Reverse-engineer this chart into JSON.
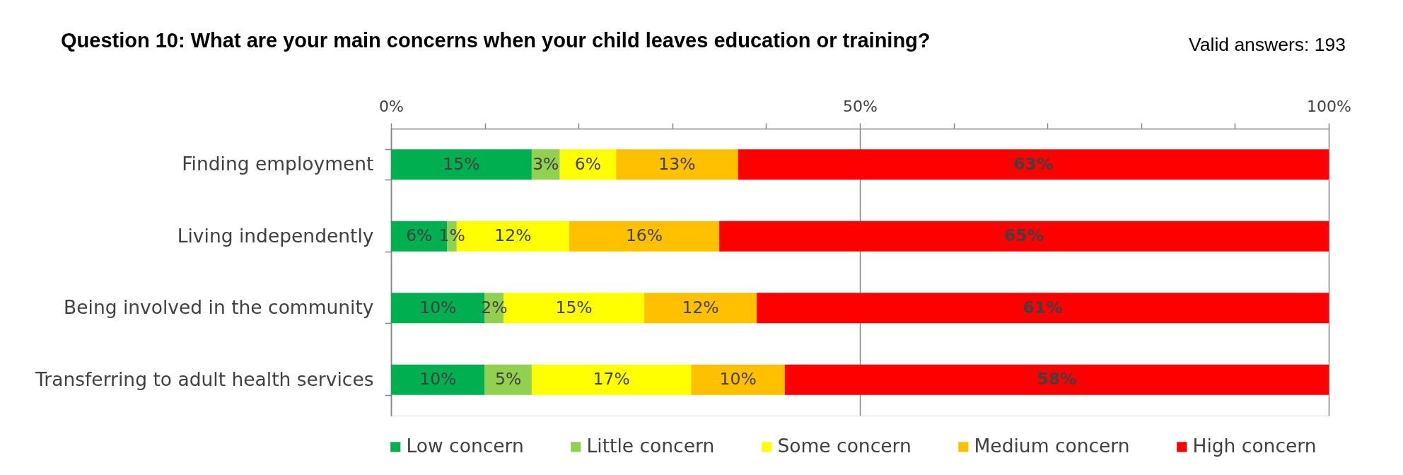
{
  "chart_data": {
    "type": "bar",
    "orientation": "horizontal",
    "stacked": true,
    "title": "Question 10: What are your main concerns when your child leaves education or training?",
    "annotations": [
      "Valid answers: 193"
    ],
    "categories": [
      "Finding employment",
      "Living independently",
      "Being involved in the community",
      "Transferring to adult health services"
    ],
    "series": [
      {
        "name": "Low concern",
        "color": "#00b050",
        "values": [
          15,
          6,
          10,
          10
        ],
        "value_labels": [
          "15%",
          "6%",
          "10%",
          "10%"
        ]
      },
      {
        "name": "Little concern",
        "color": "#92d050",
        "values": [
          3,
          1,
          2,
          5
        ],
        "value_labels": [
          "3%",
          "1%",
          "2%",
          "5%"
        ]
      },
      {
        "name": "Some concern",
        "color": "#ffff00",
        "values": [
          6,
          12,
          15,
          17
        ],
        "value_labels": [
          "6%",
          "12%",
          "15%",
          "17%"
        ]
      },
      {
        "name": "Medium concern",
        "color": "#ffc000",
        "values": [
          13,
          16,
          12,
          10
        ],
        "value_labels": [
          "13%",
          "16%",
          "12%",
          "10%"
        ]
      },
      {
        "name": "High concern",
        "color": "#ff0000",
        "values": [
          63,
          65,
          61,
          58
        ],
        "value_labels": [
          "63%",
          "65%",
          "61%",
          "58%"
        ]
      }
    ],
    "xlim": [
      0,
      100
    ],
    "xticks": [
      {
        "value": 0,
        "label": "0%"
      },
      {
        "value": 10,
        "label": null
      },
      {
        "value": 20,
        "label": null
      },
      {
        "value": 30,
        "label": null
      },
      {
        "value": 40,
        "label": null
      },
      {
        "value": 50,
        "label": "50%"
      },
      {
        "value": 60,
        "label": null
      },
      {
        "value": 70,
        "label": null
      },
      {
        "value": 80,
        "label": null
      },
      {
        "value": 90,
        "label": null
      },
      {
        "value": 100,
        "label": "100%"
      }
    ],
    "grid": "x",
    "legend": "bottom"
  }
}
